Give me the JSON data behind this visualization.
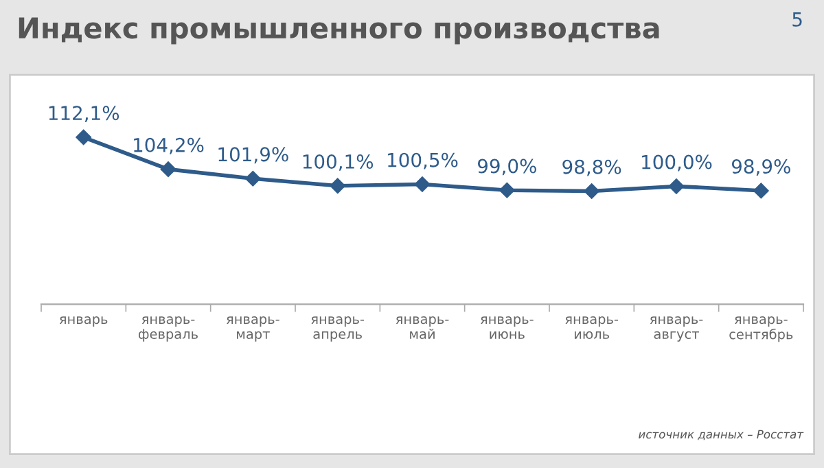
{
  "chart_data": {
    "type": "line",
    "title": "Индекс промышленного производства",
    "categories": [
      "январь",
      "январь-февраль",
      "январь-март",
      "январь-апрель",
      "январь-май",
      "январь-июнь",
      "январь-июль",
      "январь-август",
      "январь-сентябрь"
    ],
    "series": [
      {
        "color": "#2e5b8a",
        "values": [
          112.1,
          104.2,
          101.9,
          100.1,
          100.5,
          99.0,
          98.8,
          100.0,
          98.9
        ],
        "value_labels": [
          "112,1%",
          "104,2%",
          "101,9%",
          "100,1%",
          "100,5%",
          "99,0%",
          "98,8%",
          "100,0%",
          "98,9%"
        ]
      }
    ],
    "marker": "diamond",
    "line_style": "solid",
    "grid": false,
    "annotations": [
      "5",
      "источник данных – Росстат"
    ]
  }
}
